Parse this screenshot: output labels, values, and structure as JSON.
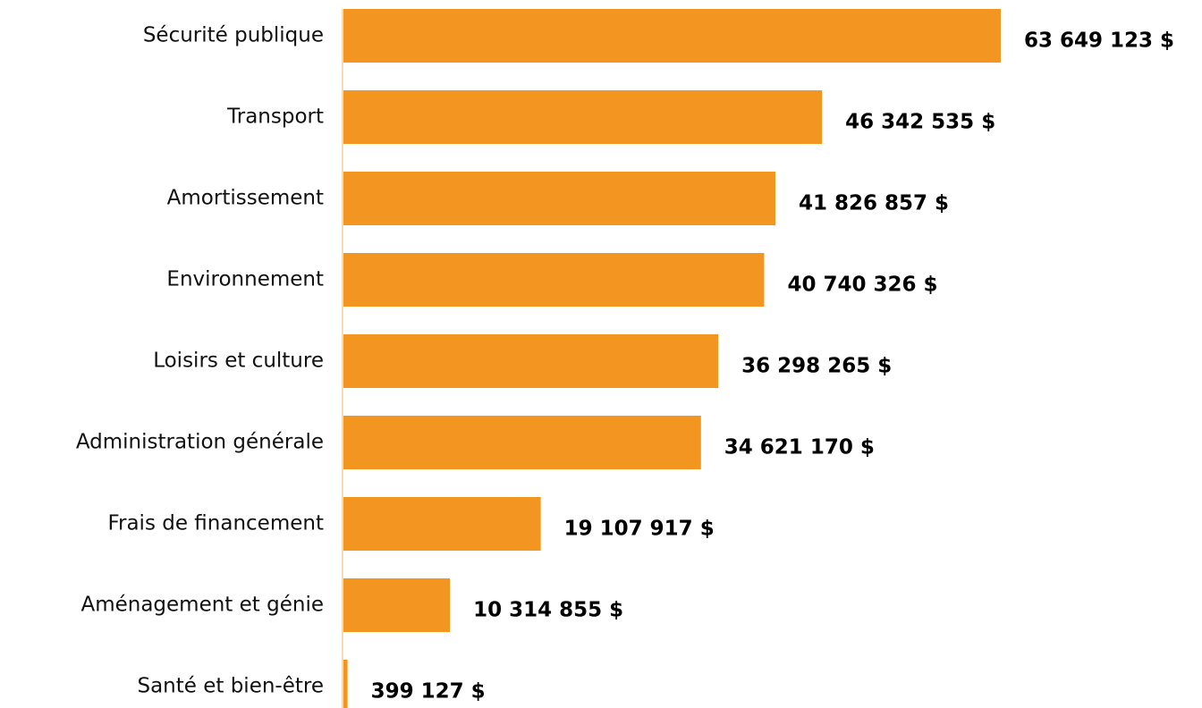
{
  "chart_data": {
    "type": "bar",
    "orientation": "horizontal",
    "categories": [
      "Sécurité publique",
      "Transport",
      "Amortissement",
      "Environnement",
      "Loisirs et culture",
      "Administration générale",
      "Frais de financement",
      "Aménagement et génie",
      "Santé et bien-être"
    ],
    "values": [
      63649123,
      46342535,
      41826857,
      40740326,
      36298265,
      34621170,
      19107917,
      10314855,
      399127
    ],
    "value_labels": [
      "63 649 123 $",
      "46 342 535 $",
      "41 826 857 $",
      "40 740 326 $",
      "36 298 265 $",
      "34 621 170 $",
      "19 107 917 $",
      "10 314 855 $",
      "399 127 $"
    ],
    "color": "#f39621"
  }
}
